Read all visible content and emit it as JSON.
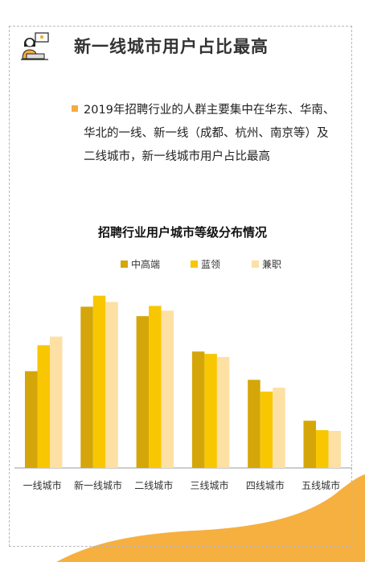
{
  "header": {
    "title": "新一线城市用户占比最高",
    "icon": "person-at-laptop-icon"
  },
  "body": {
    "paragraph": "2019年招聘行业的人群主要集中在华东、华南、华北的一线、新一线（成都、杭州、南京等）及二线城市，新一线城市用户占比最高"
  },
  "colors": {
    "accent": "#f4ac3d",
    "series": [
      "#d4a60a",
      "#f8c701",
      "#fde0a3"
    ]
  },
  "chart_data": {
    "type": "bar",
    "title": "招聘行业用户城市等级分布情况",
    "categories": [
      "一线城市",
      "新一线城市",
      "二线城市",
      "三线城市",
      "四线城市",
      "五线城市"
    ],
    "series": [
      {
        "name": "中高端",
        "values": [
          123,
          205,
          193,
          148,
          112,
          60
        ]
      },
      {
        "name": "蓝领",
        "values": [
          156,
          219,
          206,
          145,
          97,
          48
        ]
      },
      {
        "name": "兼职",
        "values": [
          167,
          211,
          200,
          141,
          102,
          47
        ]
      }
    ],
    "ylim": [
      0,
      230
    ],
    "grid": false,
    "legend_position": "top-center"
  }
}
